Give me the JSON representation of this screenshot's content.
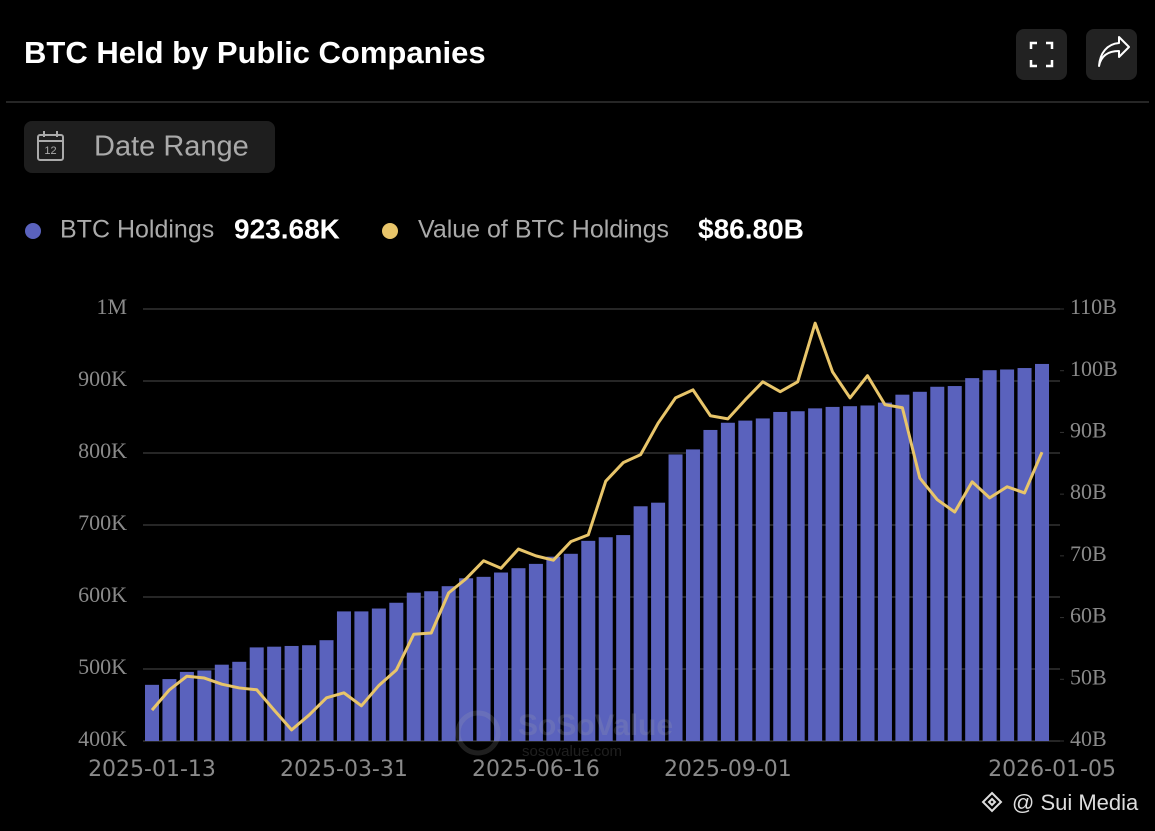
{
  "chart_data": {
    "type": "bar",
    "title": "BTC Held by Public Companies",
    "categories": [
      "2025-01-13",
      null,
      null,
      null,
      null,
      null,
      null,
      null,
      null,
      null,
      null,
      "2025-03-31",
      null,
      null,
      null,
      null,
      null,
      null,
      null,
      null,
      null,
      null,
      "2025-06-16",
      null,
      null,
      null,
      null,
      null,
      null,
      null,
      null,
      null,
      null,
      "2025-09-01",
      null,
      null,
      null,
      null,
      null,
      null,
      null,
      null,
      null,
      null,
      null,
      null,
      null,
      null,
      null,
      null,
      null,
      "2026-01-05"
    ],
    "series": [
      {
        "name": "BTC Holdings",
        "type": "bar",
        "color": "#5a62bd",
        "legend_value": "923.68K",
        "values": [
          478000,
          486000,
          496000,
          498000,
          506000,
          510000,
          530000,
          531000,
          532000,
          533000,
          540000,
          580000,
          580000,
          584000,
          592000,
          606000,
          608000,
          615000,
          626000,
          628000,
          634000,
          640000,
          646000,
          656000,
          660000,
          678000,
          683000,
          686000,
          726000,
          731000,
          798000,
          805000,
          832000,
          842000,
          845000,
          848000,
          857000,
          858000,
          862000,
          864000,
          865000,
          866000,
          870000,
          881000,
          885000,
          892000,
          893000,
          904000,
          915000,
          916000,
          918000,
          923680
        ]
      },
      {
        "name": "Value of BTC Holdings",
        "type": "line",
        "axis": "y2",
        "color": "#e8c56a",
        "legend_value": "$86.80B",
        "values": [
          45000000000,
          48300000000,
          50500000000,
          50200000000,
          49200000000,
          48600000000,
          48300000000,
          45000000000,
          41800000000,
          44200000000,
          47000000000,
          47800000000,
          45700000000,
          49000000000,
          51500000000,
          57300000000,
          57500000000,
          64000000000,
          66300000000,
          69200000000,
          68000000000,
          71100000000,
          70000000000,
          69300000000,
          72300000000,
          73400000000,
          82100000000,
          85100000000,
          86400000000,
          91500000000,
          95600000000,
          96900000000,
          92700000000,
          92200000000,
          95300000000,
          98200000000,
          96600000000,
          98200000000,
          107700000000,
          99800000000,
          95600000000,
          99200000000,
          94500000000,
          94000000000,
          82600000000,
          79100000000,
          77100000000,
          82000000000,
          79400000000,
          81200000000,
          80200000000,
          86800000000
        ]
      }
    ],
    "ylim": [
      400000,
      1000000
    ],
    "yticks": [
      {
        "value": 400000,
        "label": "400K"
      },
      {
        "value": 500000,
        "label": "500K"
      },
      {
        "value": 600000,
        "label": "600K"
      },
      {
        "value": 700000,
        "label": "700K"
      },
      {
        "value": 800000,
        "label": "800K"
      },
      {
        "value": 900000,
        "label": "900K"
      },
      {
        "value": 1000000,
        "label": "1M"
      }
    ],
    "y2lim": [
      40000000000,
      110000000000
    ],
    "y2ticks": [
      {
        "value": 40000000000,
        "label": "40B"
      },
      {
        "value": 50000000000,
        "label": "50B"
      },
      {
        "value": 60000000000,
        "label": "60B"
      },
      {
        "value": 70000000000,
        "label": "70B"
      },
      {
        "value": 80000000000,
        "label": "80B"
      },
      {
        "value": 90000000000,
        "label": "90B"
      },
      {
        "value": 100000000000,
        "label": "100B"
      },
      {
        "value": 110000000000,
        "label": "110B"
      }
    ],
    "grid": true
  },
  "controls": {
    "date_range": "Date Range"
  },
  "watermark": {
    "brand": "SoSoValue",
    "url": "sosovalue.com"
  },
  "credit": "@ Sui Media"
}
